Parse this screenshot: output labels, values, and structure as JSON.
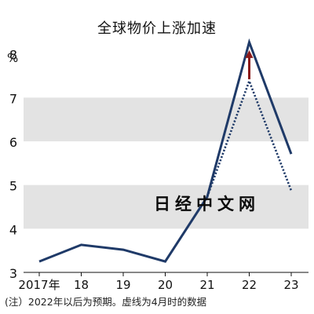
{
  "chart_data": {
    "type": "line",
    "title": "全球物价上涨加速",
    "ylabel": "%",
    "ylim": [
      3,
      8.3
    ],
    "yticks": [
      3,
      4,
      5,
      6,
      7,
      8
    ],
    "categories": [
      "2017年",
      "18",
      "19",
      "20",
      "21",
      "22",
      "23"
    ],
    "shaded_bands": [
      [
        4,
        5
      ],
      [
        6,
        7
      ]
    ],
    "series": [
      {
        "style": "solid",
        "color": "#1f3a68",
        "values": [
          3.25,
          3.63,
          3.52,
          3.25,
          4.73,
          8.27,
          5.71
        ]
      },
      {
        "style": "dotted",
        "color": "#1f3a68",
        "values": [
          null,
          null,
          null,
          null,
          4.73,
          7.38,
          4.87
        ]
      }
    ],
    "annotation": {
      "type": "arrow",
      "color": "#8b1a1a",
      "from": [
        22,
        7.42
      ],
      "to": [
        22,
        8.05
      ]
    },
    "note": "(注）2022年以后为预期。虚线为4月时的数据"
  },
  "watermark": "日经中文网"
}
